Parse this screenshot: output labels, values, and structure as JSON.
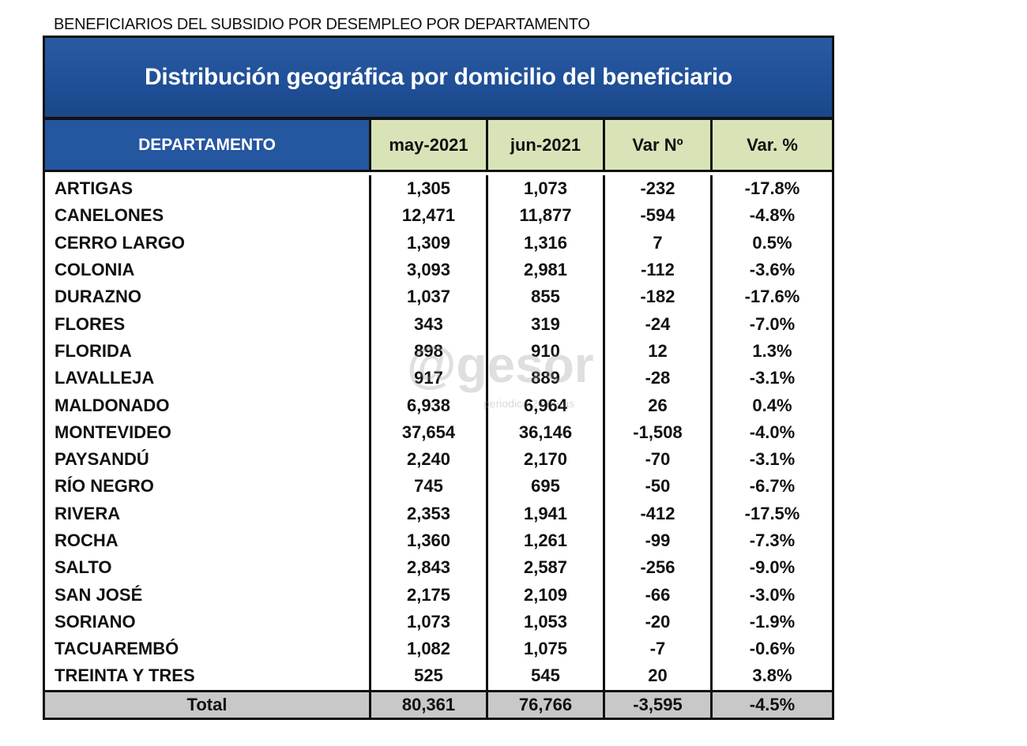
{
  "caption": "BENEFICIARIOS  DEL SUBSIDIO POR DESEMPLEO POR DEPARTAMENTO",
  "title": "Distribución geográfica por domicilio del beneficiario",
  "headers": [
    "DEPARTAMENTO",
    "may-2021",
    "jun-2021",
    "Var Nº",
    "Var. %"
  ],
  "rows": [
    [
      "ARTIGAS",
      "1,305",
      "1,073",
      "-232",
      "-17.8%"
    ],
    [
      "CANELONES",
      "12,471",
      "11,877",
      "-594",
      "-4.8%"
    ],
    [
      "CERRO LARGO",
      "1,309",
      "1,316",
      "7",
      "0.5%"
    ],
    [
      "COLONIA",
      "3,093",
      "2,981",
      "-112",
      "-3.6%"
    ],
    [
      "DURAZNO",
      "1,037",
      "855",
      "-182",
      "-17.6%"
    ],
    [
      "FLORES",
      "343",
      "319",
      "-24",
      "-7.0%"
    ],
    [
      "FLORIDA",
      "898",
      "910",
      "12",
      "1.3%"
    ],
    [
      "LAVALLEJA",
      "917",
      "889",
      "-28",
      "-3.1%"
    ],
    [
      "MALDONADO",
      "6,938",
      "6,964",
      "26",
      "0.4%"
    ],
    [
      "MONTEVIDEO",
      "37,654",
      "36,146",
      "-1,508",
      "-4.0%"
    ],
    [
      "PAYSANDÚ",
      "2,240",
      "2,170",
      "-70",
      "-3.1%"
    ],
    [
      "RÍO NEGRO",
      "745",
      "695",
      "-50",
      "-6.7%"
    ],
    [
      "RIVERA",
      "2,353",
      "1,941",
      "-412",
      "-17.5%"
    ],
    [
      "ROCHA",
      "1,360",
      "1,261",
      "-99",
      "-7.3%"
    ],
    [
      "SALTO",
      "2,843",
      "2,587",
      "-256",
      "-9.0%"
    ],
    [
      "SAN JOSÉ",
      "2,175",
      "2,109",
      "-66",
      "-3.0%"
    ],
    [
      "SORIANO",
      "1,073",
      "1,053",
      "-20",
      "-1.9%"
    ],
    [
      "TACUAREMBÓ",
      "1,082",
      "1,075",
      "-7",
      "-0.6%"
    ],
    [
      "TREINTA Y TRES",
      "525",
      "545",
      "20",
      "3.8%"
    ]
  ],
  "total": [
    "Total",
    "80,361",
    "76,766",
    "-3,595",
    "-4.5%"
  ],
  "watermark": {
    "logo": "@gesor",
    "tagline": "periodico 24 horas"
  }
}
